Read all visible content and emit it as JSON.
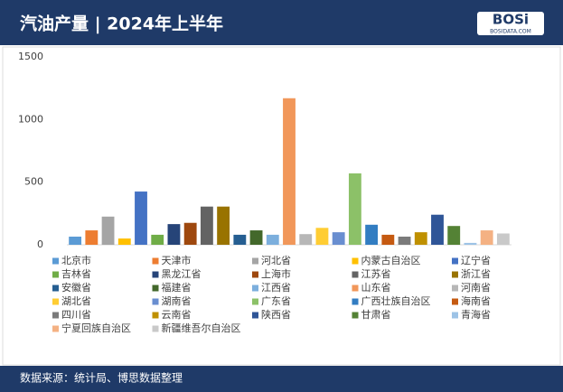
{
  "chart_data": {
    "type": "bar",
    "title": "汽油产量 | 2024年上半年",
    "logo": "BOSi",
    "logo_sub": "BOSIDATA.COM",
    "source": "数据来源：统计局、博思数据整理",
    "categories": [
      "北京市",
      "天津市",
      "河北省",
      "内蒙古自治区",
      "辽宁省",
      "吉林省",
      "黑龙江省",
      "上海市",
      "江苏省",
      "浙江省",
      "安徽省",
      "福建省",
      "江西省",
      "山东省",
      "河南省",
      "湖北省",
      "湖南省",
      "广东省",
      "广西壮族自治区",
      "海南省",
      "四川省",
      "云南省",
      "陕西省",
      "甘肃省",
      "青海省",
      "宁夏回族自治区",
      "新疆维吾尔自治区"
    ],
    "values": [
      65,
      115,
      225,
      50,
      425,
      80,
      165,
      175,
      305,
      305,
      80,
      115,
      80,
      1170,
      85,
      135,
      100,
      570,
      160,
      80,
      65,
      100,
      240,
      150,
      15,
      115,
      90
    ],
    "colors": [
      "#5b9bd5",
      "#ed7d31",
      "#a5a5a5",
      "#ffc000",
      "#4472c4",
      "#70ad47",
      "#264478",
      "#9e480e",
      "#636363",
      "#997300",
      "#255e91",
      "#43682b",
      "#7cafdd",
      "#f1975a",
      "#b7b7b7",
      "#ffcd33",
      "#698ed0",
      "#8cc168",
      "#327dc2",
      "#c55a11",
      "#7b7b7b",
      "#bf9000",
      "#2f5597",
      "#548235",
      "#9dc3e6",
      "#f4b183",
      "#c9c9c9"
    ],
    "ylim": [
      0,
      1500
    ],
    "yticks": [
      0,
      500,
      1000,
      1500
    ],
    "grid": false,
    "legend": "bottom"
  }
}
